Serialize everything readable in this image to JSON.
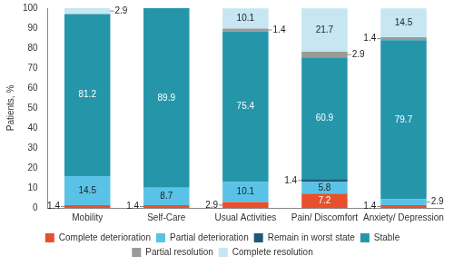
{
  "chart_data": {
    "type": "bar",
    "stacked": true,
    "data_labels": true,
    "grid": false,
    "legend": "bottom",
    "y_label": "Patients, %",
    "categories": [
      "Mobility",
      "Self-Care",
      "Usual Activities",
      "Pain/ Discomfort",
      "Anxiety/ Depression"
    ],
    "ylim": [
      0,
      100
    ],
    "yticks": [
      0,
      10,
      20,
      30,
      40,
      50,
      60,
      70,
      80,
      90,
      100
    ],
    "series": [
      {
        "name": "Complete deterioration",
        "color": "#e8502b",
        "values": [
          1.4,
          1.4,
          2.9,
          7.2,
          1.4
        ]
      },
      {
        "name": "Partial deterioration",
        "color": "#5bc2e7",
        "values": [
          14.5,
          8.7,
          10.1,
          5.8,
          2.9
        ]
      },
      {
        "name": "Remain in worst state",
        "color": "#1b5a78",
        "values": [
          null,
          null,
          null,
          1.4,
          null
        ]
      },
      {
        "name": "Stable",
        "color": "#2596aa",
        "values": [
          81.2,
          89.9,
          75.4,
          60.9,
          79.7
        ]
      },
      {
        "name": "Partial resolution",
        "color": "#9a9a9a",
        "values": [
          null,
          null,
          1.4,
          2.9,
          1.4
        ]
      },
      {
        "name": "Complete resolution",
        "color": "#c5e6f2",
        "values": [
          2.9,
          null,
          10.1,
          21.7,
          14.5
        ]
      }
    ]
  }
}
